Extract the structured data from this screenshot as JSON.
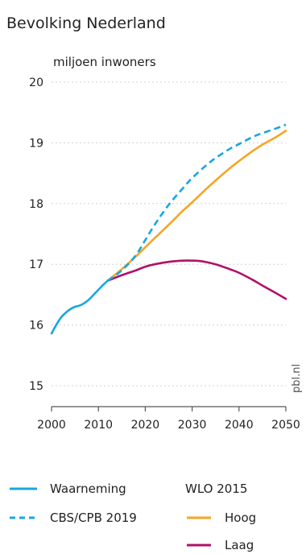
{
  "title": "Bevolking Nederland",
  "source_label": "pbl.nl",
  "colors": {
    "observed": "#1aa6e0",
    "cbs": "#1aa6e0",
    "high": "#f5a623",
    "low": "#b0106a"
  },
  "legend": {
    "observed": "Waarneming",
    "cbs": "CBS/CPB 2019",
    "group_title": "WLO 2015",
    "high": "Hoog",
    "low": "Laag"
  },
  "chart_data": {
    "type": "line",
    "title": "Bevolking Nederland",
    "ylabel": "miljoen inwoners",
    "xlabel": "",
    "xlim": [
      2000,
      2050
    ],
    "ylim": [
      15,
      20
    ],
    "xticks": [
      2000,
      2010,
      2020,
      2030,
      2040,
      2050
    ],
    "yticks": [
      15,
      16,
      17,
      18,
      19,
      20
    ],
    "grid": "horizontal dotted",
    "legend_position": "bottom",
    "series": [
      {
        "name": "Waarneming",
        "style": "solid",
        "x": [
          2000,
          2001,
          2002,
          2003,
          2004,
          2005,
          2006,
          2007,
          2008,
          2009,
          2010,
          2011,
          2012
        ],
        "y": [
          15.86,
          16.0,
          16.12,
          16.2,
          16.26,
          16.3,
          16.32,
          16.36,
          16.42,
          16.5,
          16.58,
          16.66,
          16.73
        ]
      },
      {
        "name": "CBS/CPB 2019",
        "style": "dashed",
        "x": [
          2012,
          2015,
          2018,
          2020,
          2022,
          2025,
          2028,
          2030,
          2033,
          2035,
          2038,
          2040,
          2043,
          2045,
          2048,
          2050
        ],
        "y": [
          16.73,
          16.9,
          17.15,
          17.4,
          17.65,
          17.98,
          18.25,
          18.42,
          18.63,
          18.75,
          18.9,
          18.98,
          19.1,
          19.16,
          19.24,
          19.3
        ]
      },
      {
        "name": "Hoog",
        "style": "solid",
        "x": [
          2012,
          2015,
          2018,
          2020,
          2022,
          2025,
          2028,
          2030,
          2033,
          2035,
          2038,
          2040,
          2043,
          2045,
          2048,
          2050
        ],
        "y": [
          16.73,
          16.92,
          17.13,
          17.28,
          17.43,
          17.65,
          17.88,
          18.02,
          18.24,
          18.38,
          18.58,
          18.7,
          18.87,
          18.97,
          19.1,
          19.2
        ]
      },
      {
        "name": "Laag",
        "style": "solid",
        "x": [
          2012,
          2015,
          2018,
          2020,
          2022,
          2025,
          2028,
          2030,
          2032,
          2035,
          2038,
          2040,
          2043,
          2045,
          2048,
          2050
        ],
        "y": [
          16.73,
          16.82,
          16.9,
          16.96,
          17.0,
          17.04,
          17.06,
          17.06,
          17.05,
          17.0,
          16.92,
          16.86,
          16.74,
          16.65,
          16.52,
          16.43
        ]
      }
    ]
  }
}
